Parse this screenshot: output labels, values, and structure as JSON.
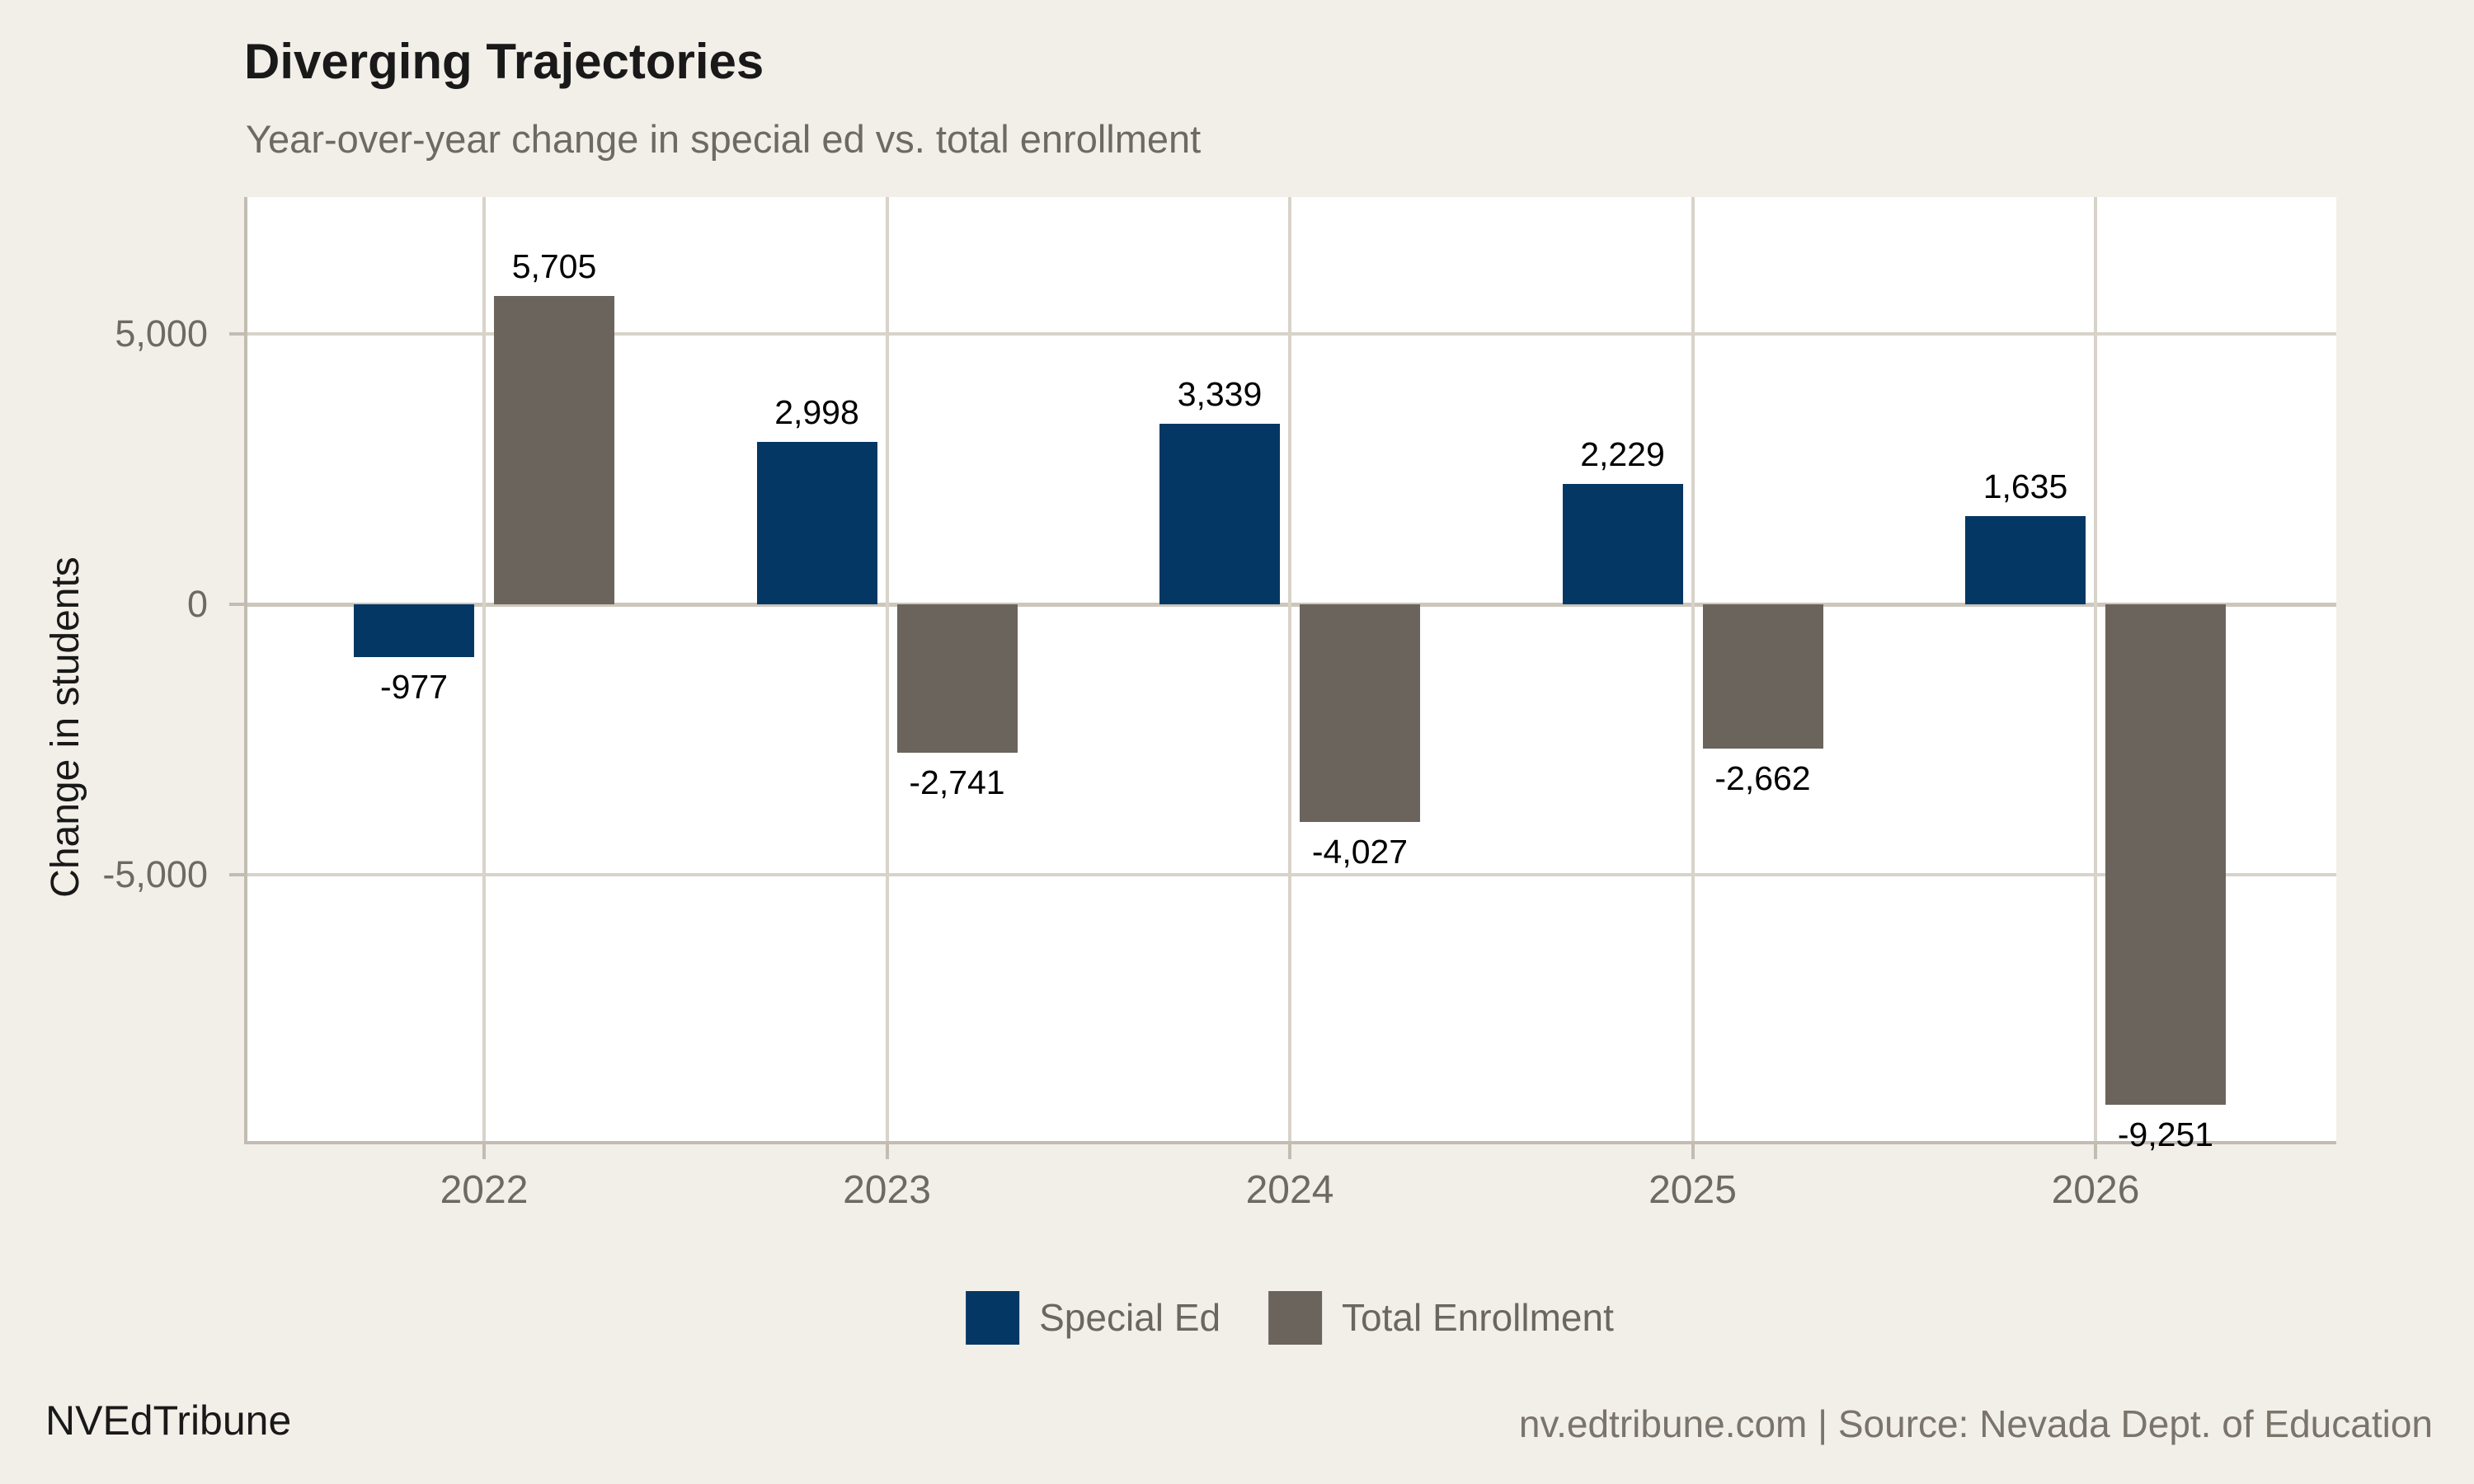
{
  "chart_data": {
    "type": "bar",
    "title": "Diverging Trajectories",
    "subtitle": "Year-over-year change in special ed vs. total enrollment",
    "ylabel": "Change in students",
    "xlabel": "",
    "categories": [
      "2022",
      "2023",
      "2024",
      "2025",
      "2026"
    ],
    "series": [
      {
        "name": "Special Ed",
        "color": "#043763",
        "values": [
          -977,
          2998,
          3339,
          2229,
          1635
        ],
        "value_labels": [
          "-977",
          "2,998",
          "3,339",
          "2,229",
          "1,635"
        ]
      },
      {
        "name": "Total Enrollment",
        "color": "#6a645c",
        "values": [
          5705,
          -2741,
          -4027,
          -2662,
          -9251
        ],
        "value_labels": [
          "5,705",
          "-2,741",
          "-4,027",
          "-2,662",
          "-9,251"
        ]
      }
    ],
    "y_ticks": [
      {
        "value": 5000,
        "label": "5,000"
      },
      {
        "value": 0,
        "label": "0"
      },
      {
        "value": -5000,
        "label": "-5,000"
      }
    ],
    "ylim": [
      -9950,
      7530
    ],
    "grid": true,
    "legend_position": "bottom"
  },
  "footer": {
    "brand": "NVEdTribune",
    "source_line": "nv.edtribune.com | Source: Nevada Dept. of Education"
  },
  "colors": {
    "background": "#f2efe9",
    "panel": "#ffffff",
    "grid": "#d8d3c9",
    "zero_line": "#ccc6bc",
    "axis": "#c2bcb2",
    "special_ed": "#043763",
    "total_enrollment": "#6a645c"
  }
}
